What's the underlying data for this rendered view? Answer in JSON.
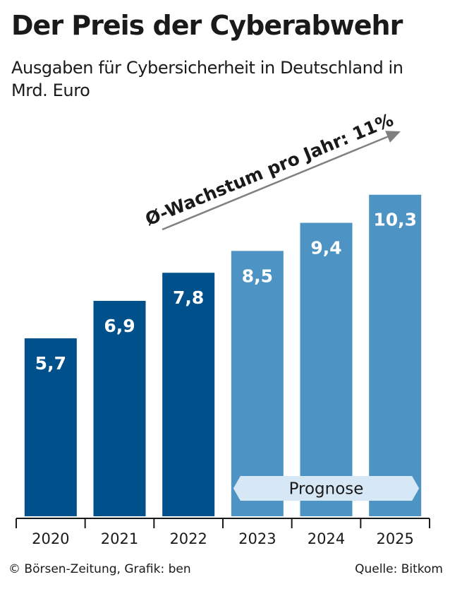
{
  "chart_data": {
    "type": "bar",
    "title": "Der Preis der Cyberabwehr",
    "subtitle": "Ausgaben für Cybersicherheit in Deutschland in Mrd. Euro",
    "categories": [
      "2020",
      "2021",
      "2022",
      "2023",
      "2024",
      "2025"
    ],
    "values": [
      5.7,
      6.9,
      7.8,
      8.5,
      9.4,
      10.3
    ],
    "value_labels": [
      "5,7",
      "6,9",
      "7,8",
      "8,5",
      "9,4",
      "10,3"
    ],
    "ylim": [
      0,
      11.8
    ],
    "grid": false,
    "forecast_from_index": 3,
    "annotations": {
      "growth": "Ø-Wachstum pro Jahr: 11%",
      "forecast": "Prognose"
    }
  },
  "colors": {
    "actual": "#00508c",
    "forecast": "#4d94c4",
    "forecast_band": "#d6e8f5",
    "arrow": "#808080",
    "axis": "#1a1a1a"
  },
  "footer": {
    "credit": "© Börsen-Zeitung, Grafik: ben",
    "source": "Quelle: Bitkom"
  }
}
